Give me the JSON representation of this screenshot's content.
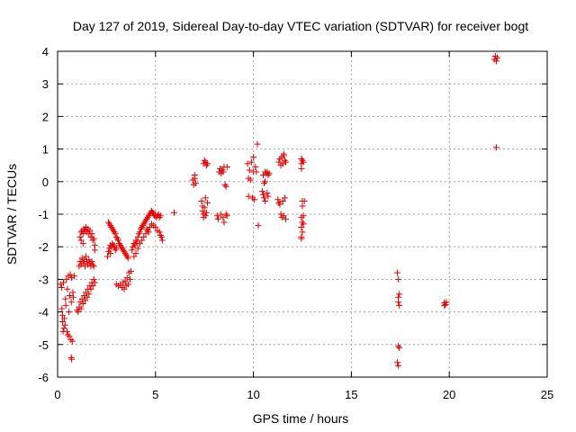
{
  "chart_data": {
    "type": "scatter",
    "title": "Day 127 of 2019, Sidereal Day-to-day VTEC variation (SDTVAR) for receiver bogt",
    "xlabel": "GPS time / hours",
    "ylabel": "SDTVAR / TECUs",
    "xlim": [
      0,
      25
    ],
    "ylim": [
      -6,
      4
    ],
    "xticks": [
      0,
      5,
      10,
      15,
      20,
      25
    ],
    "yticks": [
      -6,
      -5,
      -4,
      -3,
      -2,
      -1,
      0,
      1,
      2,
      3,
      4
    ],
    "xtick_labels": [
      "0",
      "5",
      "10",
      "15",
      "20",
      "25"
    ],
    "ytick_labels": [
      "-6",
      "-5",
      "-4",
      "-3",
      "-2",
      "-1",
      "0",
      "1",
      "2",
      "3",
      "4"
    ],
    "grid": true,
    "marker": "+",
    "color": "#e00000",
    "series": [
      {
        "name": "SDTVAR",
        "points": [
          [
            0.15,
            -3.15
          ],
          [
            0.2,
            -3.25
          ],
          [
            0.22,
            -3.9
          ],
          [
            0.25,
            -4.1
          ],
          [
            0.25,
            -4.3
          ],
          [
            0.28,
            -4.6
          ],
          [
            0.3,
            -3.1
          ],
          [
            0.32,
            -4.5
          ],
          [
            0.35,
            -4.2
          ],
          [
            0.38,
            -4.4
          ],
          [
            0.4,
            -3.6
          ],
          [
            0.42,
            -3.8
          ],
          [
            0.45,
            -3.0
          ],
          [
            0.48,
            -4.6
          ],
          [
            0.5,
            -3.3
          ],
          [
            0.52,
            -4.7
          ],
          [
            0.55,
            -2.9
          ],
          [
            0.58,
            -4.0
          ],
          [
            0.6,
            -4.75
          ],
          [
            0.62,
            -3.5
          ],
          [
            0.65,
            -2.85
          ],
          [
            0.68,
            -4.85
          ],
          [
            0.7,
            -3.7
          ],
          [
            0.72,
            -2.95
          ],
          [
            0.75,
            -4.9
          ],
          [
            0.7,
            -5.4
          ],
          [
            0.72,
            -5.45
          ],
          [
            0.78,
            -3.4
          ],
          [
            0.8,
            -3.55
          ],
          [
            0.85,
            -2.9
          ],
          [
            1.0,
            -3.95
          ],
          [
            1.05,
            -4.0
          ],
          [
            1.1,
            -3.85
          ],
          [
            1.15,
            -3.7
          ],
          [
            1.2,
            -3.9
          ],
          [
            1.25,
            -3.6
          ],
          [
            1.3,
            -3.75
          ],
          [
            1.35,
            -3.5
          ],
          [
            1.4,
            -3.65
          ],
          [
            1.45,
            -3.4
          ],
          [
            1.5,
            -3.55
          ],
          [
            1.55,
            -3.3
          ],
          [
            1.6,
            -3.45
          ],
          [
            1.65,
            -3.2
          ],
          [
            1.7,
            -3.3
          ],
          [
            1.75,
            -3.1
          ],
          [
            1.8,
            -3.2
          ],
          [
            1.85,
            -3.0
          ],
          [
            1.9,
            -3.1
          ],
          [
            1.1,
            -2.6
          ],
          [
            1.15,
            -2.45
          ],
          [
            1.2,
            -2.55
          ],
          [
            1.25,
            -2.35
          ],
          [
            1.3,
            -2.5
          ],
          [
            1.35,
            -2.4
          ],
          [
            1.4,
            -2.6
          ],
          [
            1.45,
            -2.3
          ],
          [
            1.5,
            -2.45
          ],
          [
            1.55,
            -2.55
          ],
          [
            1.6,
            -2.4
          ],
          [
            1.65,
            -2.5
          ],
          [
            1.7,
            -2.6
          ],
          [
            1.75,
            -2.45
          ],
          [
            1.8,
            -2.55
          ],
          [
            1.85,
            -2.6
          ],
          [
            1.15,
            -1.7
          ],
          [
            1.2,
            -1.55
          ],
          [
            1.25,
            -1.5
          ],
          [
            1.3,
            -1.6
          ],
          [
            1.35,
            -1.45
          ],
          [
            1.4,
            -1.5
          ],
          [
            1.45,
            -1.4
          ],
          [
            1.5,
            -1.55
          ],
          [
            1.55,
            -1.45
          ],
          [
            1.6,
            -1.6
          ],
          [
            1.65,
            -1.5
          ],
          [
            1.7,
            -1.7
          ],
          [
            1.75,
            -1.6
          ],
          [
            1.8,
            -1.8
          ],
          [
            1.85,
            -1.75
          ],
          [
            1.9,
            -1.95
          ],
          [
            1.9,
            -2.1
          ],
          [
            1.2,
            -1.8
          ],
          [
            1.3,
            -1.9
          ],
          [
            2.6,
            -1.25
          ],
          [
            2.65,
            -1.3
          ],
          [
            2.7,
            -1.35
          ],
          [
            2.75,
            -1.4
          ],
          [
            2.8,
            -1.45
          ],
          [
            2.85,
            -1.5
          ],
          [
            2.9,
            -1.55
          ],
          [
            2.95,
            -1.6
          ],
          [
            3.0,
            -1.7
          ],
          [
            3.05,
            -1.75
          ],
          [
            3.1,
            -1.8
          ],
          [
            3.15,
            -1.9
          ],
          [
            3.2,
            -1.95
          ],
          [
            3.25,
            -2.0
          ],
          [
            3.3,
            -2.05
          ],
          [
            3.35,
            -2.1
          ],
          [
            3.4,
            -2.15
          ],
          [
            3.45,
            -2.2
          ],
          [
            3.5,
            -2.25
          ],
          [
            3.55,
            -2.3
          ],
          [
            3.6,
            -2.35
          ],
          [
            2.6,
            -2.15
          ],
          [
            2.65,
            -2.05
          ],
          [
            2.7,
            -1.95
          ],
          [
            2.75,
            -2.0
          ],
          [
            2.8,
            -1.9
          ],
          [
            2.85,
            -1.95
          ],
          [
            2.9,
            -2.0
          ],
          [
            2.95,
            -2.1
          ],
          [
            3.0,
            -2.05
          ],
          [
            2.55,
            -2.3
          ],
          [
            2.7,
            -2.2
          ],
          [
            3.0,
            -3.15
          ],
          [
            3.1,
            -3.2
          ],
          [
            3.2,
            -3.15
          ],
          [
            3.3,
            -3.25
          ],
          [
            3.35,
            -3.1
          ],
          [
            3.4,
            -3.3
          ],
          [
            3.45,
            -3.05
          ],
          [
            3.5,
            -3.2
          ],
          [
            3.55,
            -2.95
          ],
          [
            3.6,
            -3.15
          ],
          [
            3.65,
            -2.8
          ],
          [
            3.7,
            -3.0
          ],
          [
            3.75,
            -2.75
          ],
          [
            3.8,
            -2.1
          ],
          [
            3.85,
            -2.0
          ],
          [
            3.9,
            -1.9
          ],
          [
            3.95,
            -1.95
          ],
          [
            4.0,
            -1.8
          ],
          [
            4.05,
            -1.85
          ],
          [
            4.1,
            -1.7
          ],
          [
            4.15,
            -1.6
          ],
          [
            4.2,
            -1.55
          ],
          [
            4.25,
            -1.45
          ],
          [
            4.3,
            -1.4
          ],
          [
            4.35,
            -1.35
          ],
          [
            4.4,
            -1.3
          ],
          [
            4.45,
            -1.25
          ],
          [
            4.5,
            -1.2
          ],
          [
            4.55,
            -1.15
          ],
          [
            4.6,
            -1.1
          ],
          [
            4.65,
            -1.05
          ],
          [
            4.7,
            -1.0
          ],
          [
            4.75,
            -0.95
          ],
          [
            4.8,
            -0.9
          ],
          [
            4.85,
            -0.95
          ],
          [
            4.9,
            -1.0
          ],
          [
            4.95,
            -1.05
          ],
          [
            5.0,
            -1.0
          ],
          [
            5.05,
            -1.1
          ],
          [
            5.1,
            -1.05
          ],
          [
            5.15,
            -1.0
          ],
          [
            5.2,
            -1.1
          ],
          [
            5.25,
            -1.05
          ],
          [
            3.9,
            -2.3
          ],
          [
            4.0,
            -2.2
          ],
          [
            4.1,
            -2.05
          ],
          [
            4.2,
            -1.9
          ],
          [
            4.3,
            -1.8
          ],
          [
            4.4,
            -1.7
          ],
          [
            4.5,
            -1.6
          ],
          [
            4.6,
            -1.5
          ],
          [
            4.7,
            -1.4
          ],
          [
            4.8,
            -1.3
          ],
          [
            4.9,
            -1.35
          ],
          [
            5.0,
            -1.4
          ],
          [
            5.1,
            -1.5
          ],
          [
            5.2,
            -1.55
          ],
          [
            5.25,
            -1.65
          ],
          [
            5.3,
            -1.7
          ],
          [
            5.35,
            -1.8
          ],
          [
            4.55,
            -1.45
          ],
          [
            4.65,
            -1.55
          ],
          [
            5.95,
            -0.95
          ],
          [
            6.9,
            0.05
          ],
          [
            6.95,
            -0.1
          ],
          [
            7.0,
            0.1
          ],
          [
            7.05,
            -0.05
          ],
          [
            7.0,
            0.2
          ],
          [
            7.35,
            -0.6
          ],
          [
            7.4,
            -0.75
          ],
          [
            7.4,
            -0.9
          ],
          [
            7.45,
            -1.0
          ],
          [
            7.45,
            -1.1
          ],
          [
            7.5,
            -0.8
          ],
          [
            7.55,
            -0.5
          ],
          [
            7.55,
            -1.05
          ],
          [
            7.6,
            -0.95
          ],
          [
            7.65,
            -0.65
          ],
          [
            7.45,
            0.55
          ],
          [
            7.5,
            0.65
          ],
          [
            7.55,
            0.6
          ],
          [
            7.6,
            0.5
          ],
          [
            7.65,
            0.55
          ],
          [
            8.15,
            -1.05
          ],
          [
            8.2,
            -1.15
          ],
          [
            8.25,
            0.3
          ],
          [
            8.3,
            0.4
          ],
          [
            8.35,
            0.25
          ],
          [
            8.35,
            -1.0
          ],
          [
            8.4,
            0.35
          ],
          [
            8.45,
            -1.1
          ],
          [
            8.45,
            0.3
          ],
          [
            8.5,
            0.45
          ],
          [
            8.55,
            -0.1
          ],
          [
            8.6,
            -0.15
          ],
          [
            8.6,
            -1.0
          ],
          [
            8.65,
            -1.05
          ],
          [
            8.65,
            0.45
          ],
          [
            8.5,
            -1.25
          ],
          [
            9.7,
            0.55
          ],
          [
            9.75,
            0.1
          ],
          [
            9.75,
            -0.45
          ],
          [
            9.8,
            0.35
          ],
          [
            9.85,
            0.05
          ],
          [
            9.9,
            0.6
          ],
          [
            9.95,
            -0.5
          ],
          [
            10.0,
            0.75
          ],
          [
            10.0,
            0.3
          ],
          [
            10.05,
            -0.55
          ],
          [
            10.1,
            0.45
          ],
          [
            10.15,
            0.3
          ],
          [
            10.2,
            1.15
          ],
          [
            10.25,
            -1.35
          ],
          [
            10.45,
            -0.3
          ],
          [
            10.5,
            -0.4
          ],
          [
            10.5,
            0.2
          ],
          [
            10.55,
            -0.5
          ],
          [
            10.6,
            -0.6
          ],
          [
            10.6,
            0.3
          ],
          [
            10.65,
            0.25
          ],
          [
            10.7,
            -0.35
          ],
          [
            10.7,
            0.3
          ],
          [
            10.75,
            -0.45
          ],
          [
            10.75,
            0.2
          ],
          [
            10.8,
            0.25
          ],
          [
            10.55,
            -0.05
          ],
          [
            10.6,
            0.0
          ],
          [
            11.25,
            -0.55
          ],
          [
            11.3,
            -0.65
          ],
          [
            11.3,
            0.6
          ],
          [
            11.35,
            0.7
          ],
          [
            11.35,
            -0.7
          ],
          [
            11.4,
            0.5
          ],
          [
            11.4,
            -1.0
          ],
          [
            11.45,
            0.75
          ],
          [
            11.45,
            -1.1
          ],
          [
            11.5,
            0.55
          ],
          [
            11.5,
            -0.6
          ],
          [
            11.55,
            0.8
          ],
          [
            11.55,
            -1.05
          ],
          [
            11.6,
            0.65
          ],
          [
            11.6,
            -0.5
          ],
          [
            11.65,
            0.6
          ],
          [
            11.65,
            -1.15
          ],
          [
            11.55,
            0.85
          ],
          [
            12.45,
            0.7
          ],
          [
            12.45,
            0.55
          ],
          [
            12.45,
            0.4
          ],
          [
            12.5,
            -0.6
          ],
          [
            12.5,
            -0.75
          ],
          [
            12.45,
            -1.1
          ],
          [
            12.5,
            -1.25
          ],
          [
            12.45,
            -1.4
          ],
          [
            12.5,
            -1.55
          ],
          [
            12.45,
            -1.7
          ],
          [
            12.5,
            0.65
          ],
          [
            12.55,
            0.6
          ],
          [
            12.55,
            -1.05
          ],
          [
            12.55,
            -1.3
          ],
          [
            12.6,
            -0.6
          ],
          [
            12.45,
            -1.75
          ],
          [
            17.35,
            -2.8
          ],
          [
            17.4,
            -3.0
          ],
          [
            17.4,
            -3.55
          ],
          [
            17.45,
            -3.45
          ],
          [
            17.4,
            -3.7
          ],
          [
            17.45,
            -3.8
          ],
          [
            17.4,
            -5.05
          ],
          [
            17.45,
            -5.1
          ],
          [
            17.35,
            -5.55
          ],
          [
            17.4,
            -5.65
          ],
          [
            19.75,
            -3.72
          ],
          [
            19.8,
            -3.78
          ],
          [
            19.85,
            -3.7
          ],
          [
            19.75,
            -3.8
          ],
          [
            22.3,
            3.75
          ],
          [
            22.35,
            3.85
          ],
          [
            22.4,
            3.7
          ],
          [
            22.45,
            3.8
          ],
          [
            22.4,
            1.05
          ]
        ]
      }
    ]
  }
}
